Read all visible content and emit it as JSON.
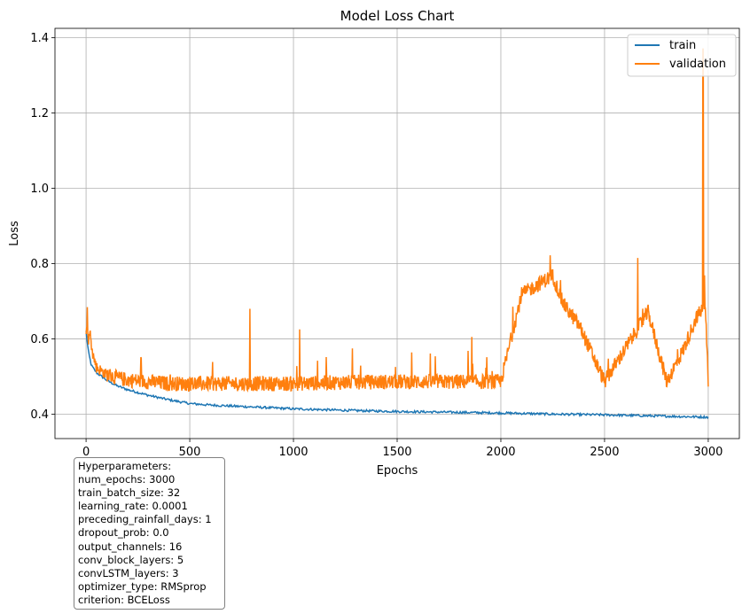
{
  "chart_data": {
    "type": "line",
    "title": "Model Loss Chart",
    "xlabel": "Epochs",
    "ylabel": "Loss",
    "xlim": [
      -150,
      3150
    ],
    "ylim": [
      0.335,
      1.425
    ],
    "xticks": [
      0,
      500,
      1000,
      1500,
      2000,
      2500,
      3000
    ],
    "xtick_labels": [
      "0",
      "500",
      "1000",
      "1500",
      "2000",
      "2500",
      "3000"
    ],
    "yticks": [
      0.4,
      0.6,
      0.8,
      1.0,
      1.2,
      1.4
    ],
    "ytick_labels": [
      "0.4",
      "0.6",
      "0.8",
      "1.0",
      "1.2",
      "1.4"
    ],
    "grid": true,
    "legend_position": "top-right",
    "series": [
      {
        "name": "train",
        "color": "#1f77b4",
        "x": [
          0,
          10,
          25,
          50,
          100,
          150,
          200,
          300,
          400,
          500,
          600,
          800,
          1000,
          1250,
          1500,
          1750,
          2000,
          2250,
          2500,
          2750,
          3000
        ],
        "values": [
          0.62,
          0.57,
          0.53,
          0.51,
          0.49,
          0.475,
          0.465,
          0.45,
          0.438,
          0.428,
          0.424,
          0.419,
          0.414,
          0.41,
          0.407,
          0.405,
          0.403,
          0.4,
          0.398,
          0.395,
          0.392
        ]
      },
      {
        "name": "validation",
        "color": "#ff7f0e",
        "x": [
          0,
          5,
          10,
          20,
          30,
          50,
          75,
          100,
          150,
          200,
          300,
          400,
          500,
          700,
          790,
          900,
          1000,
          1030,
          1200,
          1500,
          1800,
          1860,
          2000,
          2100,
          2250,
          2300,
          2380,
          2500,
          2660,
          2710,
          2800,
          2880,
          2940,
          2975,
          2985,
          3000
        ],
        "values": [
          0.6,
          0.64,
          0.59,
          0.61,
          0.56,
          0.52,
          0.51,
          0.5,
          0.49,
          0.485,
          0.48,
          0.475,
          0.475,
          0.475,
          0.68,
          0.475,
          0.475,
          0.625,
          0.478,
          0.48,
          0.48,
          0.605,
          0.48,
          0.712,
          0.762,
          0.688,
          0.627,
          0.48,
          0.815,
          0.665,
          0.48,
          0.565,
          0.648,
          1.37,
          0.685,
          0.48
        ]
      }
    ]
  },
  "hyperparameters": {
    "title": "Hyperparameters:",
    "num_epochs": "num_epochs: 3000",
    "train_batch_size": "train_batch_size: 32",
    "learning_rate": "learning_rate: 0.0001",
    "preceding_rainfall_days": "preceding_rainfall_days: 1",
    "dropout_prob": "dropout_prob: 0.0",
    "output_channels": "output_channels: 16",
    "conv_block_layers": "conv_block_layers: 5",
    "convLSTM_layers": "convLSTM_layers: 3",
    "optimizer_type": "optimizer_type: RMSprop",
    "criterion": "criterion: BCELoss"
  }
}
